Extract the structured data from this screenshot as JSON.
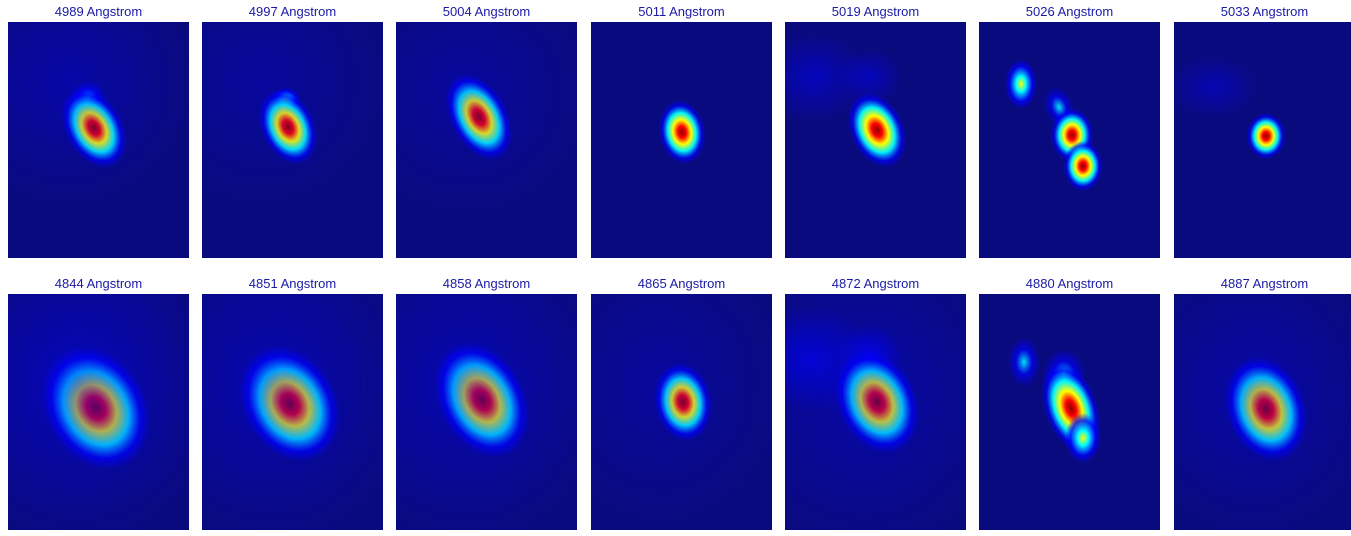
{
  "figure": {
    "colormap": [
      "#00008f",
      "#0000ff",
      "#00ffff",
      "#ffff00",
      "#ff0000",
      "#8b0000"
    ],
    "background_color": "#0a0a7f",
    "title_color": "#1a1aa8",
    "rows": [
      {
        "panels": [
          {
            "title": "4989 Angstrom"
          },
          {
            "title": "4997 Angstrom"
          },
          {
            "title": "5004 Angstrom"
          },
          {
            "title": "5011 Angstrom"
          },
          {
            "title": "5019 Angstrom"
          },
          {
            "title": "5026 Angstrom"
          },
          {
            "title": "5033 Angstrom"
          }
        ]
      },
      {
        "panels": [
          {
            "title": "4844 Angstrom"
          },
          {
            "title": "4851 Angstrom"
          },
          {
            "title": "4858 Angstrom"
          },
          {
            "title": "4865 Angstrom"
          },
          {
            "title": "4872 Angstrom"
          },
          {
            "title": "4880 Angstrom"
          },
          {
            "title": "4887 Angstrom"
          }
        ]
      }
    ]
  }
}
